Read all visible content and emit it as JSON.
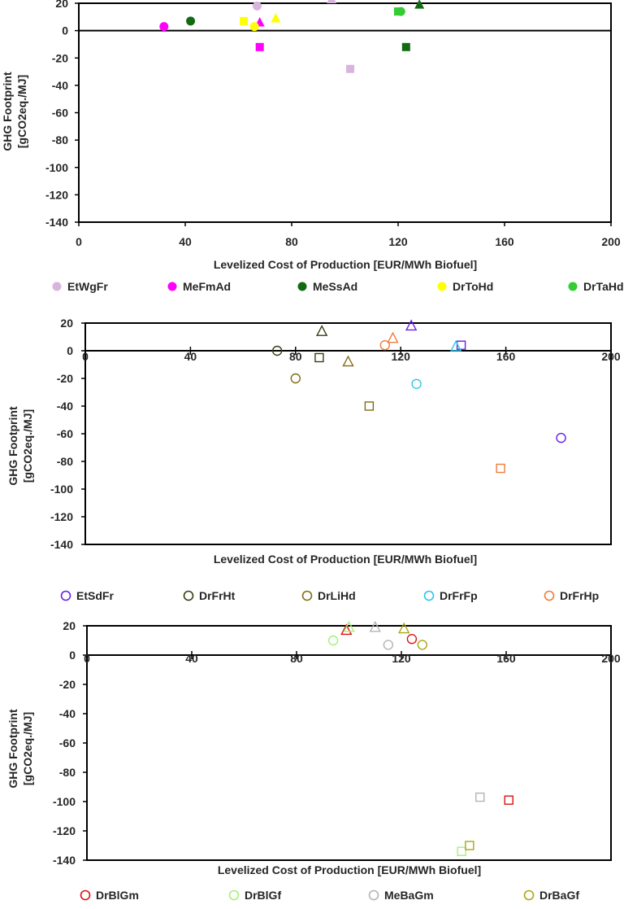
{
  "chart_data": [
    {
      "type": "scatter",
      "title": "",
      "xlabel": "Levelized Cost of Production [EUR/MWh Biofuel]",
      "ylabel": "GHG Footprint\n[gCO2eq./MJ]",
      "xlim": [
        0,
        200
      ],
      "ylim": [
        -140,
        20
      ],
      "xticks": [
        0,
        40,
        80,
        120,
        160,
        200
      ],
      "yticks": [
        20,
        0,
        -20,
        -40,
        -60,
        -80,
        -100,
        -120,
        -140
      ],
      "xticks_on_zero_line": false,
      "grid": false,
      "legend": [
        {
          "name": "EtWgFr",
          "color": "#d8b4de",
          "filled": true
        },
        {
          "name": "MeFmAd",
          "color": "#ff00ff",
          "filled": true
        },
        {
          "name": "MeSsAd",
          "color": "#126b12",
          "filled": true
        },
        {
          "name": "DrToHd",
          "color": "#ffff00",
          "filled": true
        },
        {
          "name": "DrTaHd",
          "color": "#33cc33",
          "filled": true
        }
      ],
      "series": [
        {
          "name": "EtWgFr",
          "color": "#d8b4de",
          "filled": true,
          "points": [
            {
              "x": 67,
              "y": 18,
              "marker": "circle"
            },
            {
              "x": 95,
              "y": 23,
              "marker": "triangle"
            },
            {
              "x": 102,
              "y": -28,
              "marker": "square"
            }
          ]
        },
        {
          "name": "MeFmAd",
          "color": "#ff00ff",
          "filled": true,
          "points": [
            {
              "x": 32,
              "y": 3,
              "marker": "circle"
            },
            {
              "x": 68,
              "y": 6,
              "marker": "triangle"
            },
            {
              "x": 68,
              "y": -12,
              "marker": "square"
            }
          ]
        },
        {
          "name": "MeSsAd",
          "color": "#126b12",
          "filled": true,
          "points": [
            {
              "x": 42,
              "y": 7,
              "marker": "circle"
            },
            {
              "x": 128,
              "y": 19,
              "marker": "triangle"
            },
            {
              "x": 123,
              "y": -12,
              "marker": "square"
            }
          ]
        },
        {
          "name": "DrToHd",
          "color": "#ffff00",
          "filled": true,
          "points": [
            {
              "x": 62,
              "y": 7,
              "marker": "square"
            },
            {
              "x": 66,
              "y": 3,
              "marker": "circle"
            },
            {
              "x": 74,
              "y": 9,
              "marker": "triangle"
            }
          ]
        },
        {
          "name": "DrTaHd",
          "color": "#33cc33",
          "filled": true,
          "points": [
            {
              "x": 121,
              "y": 14,
              "marker": "circle"
            },
            {
              "x": 120,
              "y": 14,
              "marker": "square"
            }
          ]
        }
      ]
    },
    {
      "type": "scatter",
      "title": "",
      "xlabel": "Levelized Cost of Production [EUR/MWh Biofuel]",
      "ylabel": "GHG Footprint\n[gCO2eq./MJ]",
      "xlim": [
        0,
        200
      ],
      "ylim": [
        -140,
        20
      ],
      "xticks": [
        0,
        40,
        80,
        120,
        160,
        200
      ],
      "yticks": [
        20,
        0,
        -20,
        -40,
        -60,
        -80,
        -100,
        -120,
        -140
      ],
      "xticks_on_zero_line": true,
      "grid": false,
      "legend": [
        {
          "name": "EtSdFr",
          "color": "#6a1ee6",
          "filled": false
        },
        {
          "name": "DrFrHt",
          "color": "#3c3c14",
          "filled": false
        },
        {
          "name": "DrLiHd",
          "color": "#826b14",
          "filled": false
        },
        {
          "name": "DrFrFp",
          "color": "#2cc4ee",
          "filled": false
        },
        {
          "name": "DrFrHp",
          "color": "#f07b3c",
          "filled": false
        }
      ],
      "series": [
        {
          "name": "EtSdFr",
          "color": "#6a1ee6",
          "filled": false,
          "points": [
            {
              "x": 124,
              "y": 18,
              "marker": "triangle"
            },
            {
              "x": 143,
              "y": 4,
              "marker": "square"
            },
            {
              "x": 181,
              "y": -63,
              "marker": "circle"
            }
          ]
        },
        {
          "name": "DrFrHt",
          "color": "#3c3c14",
          "filled": false,
          "points": [
            {
              "x": 73,
              "y": 0,
              "marker": "circle"
            },
            {
              "x": 90,
              "y": 14,
              "marker": "triangle"
            },
            {
              "x": 89,
              "y": -5,
              "marker": "square"
            }
          ]
        },
        {
          "name": "DrLiHd",
          "color": "#826b14",
          "filled": false,
          "points": [
            {
              "x": 80,
              "y": -20,
              "marker": "circle"
            },
            {
              "x": 100,
              "y": -8,
              "marker": "triangle"
            },
            {
              "x": 108,
              "y": -40,
              "marker": "square"
            }
          ]
        },
        {
          "name": "DrFrFp",
          "color": "#2cc4ee",
          "filled": false,
          "points": [
            {
              "x": 126,
              "y": -24,
              "marker": "circle"
            },
            {
              "x": 141,
              "y": 3,
              "marker": "triangle"
            }
          ]
        },
        {
          "name": "DrFrHp",
          "color": "#f07b3c",
          "filled": false,
          "points": [
            {
              "x": 114,
              "y": 4,
              "marker": "circle"
            },
            {
              "x": 117,
              "y": 9,
              "marker": "triangle"
            },
            {
              "x": 158,
              "y": -85,
              "marker": "square"
            }
          ]
        }
      ]
    },
    {
      "type": "scatter",
      "title": "",
      "xlabel": "Levelized Cost of Production [EUR/MWh Biofuel]",
      "ylabel": "GHG Footprint\n[gCO2eq./MJ]",
      "xlim": [
        0,
        200
      ],
      "ylim": [
        -140,
        20
      ],
      "xticks": [
        0,
        40,
        80,
        120,
        160,
        200
      ],
      "yticks": [
        20,
        0,
        -20,
        -40,
        -60,
        -80,
        -100,
        -120,
        -140
      ],
      "xticks_on_zero_line": true,
      "grid": false,
      "legend": [
        {
          "name": "DrBlGm",
          "color": "#dd1111",
          "filled": false
        },
        {
          "name": "DrBlGf",
          "color": "#a6f07a",
          "filled": false
        },
        {
          "name": "MeBaGm",
          "color": "#b4b4b4",
          "filled": false
        },
        {
          "name": "DrBaGf",
          "color": "#a8a814",
          "filled": false
        }
      ],
      "series": [
        {
          "name": "DrBlGm",
          "color": "#dd1111",
          "filled": false,
          "points": [
            {
              "x": 99,
              "y": 17,
              "marker": "triangle"
            },
            {
              "x": 124,
              "y": 11,
              "marker": "circle"
            },
            {
              "x": 161,
              "y": -99,
              "marker": "square"
            }
          ]
        },
        {
          "name": "DrBlGf",
          "color": "#a6f07a",
          "filled": false,
          "points": [
            {
              "x": 94,
              "y": 10,
              "marker": "circle"
            },
            {
              "x": 100,
              "y": 19,
              "marker": "triangle"
            },
            {
              "x": 143,
              "y": -134,
              "marker": "square"
            }
          ]
        },
        {
          "name": "MeBaGm",
          "color": "#b4b4b4",
          "filled": false,
          "points": [
            {
              "x": 110,
              "y": 19,
              "marker": "triangle"
            },
            {
              "x": 115,
              "y": 7,
              "marker": "circle"
            },
            {
              "x": 150,
              "y": -97,
              "marker": "square"
            }
          ]
        },
        {
          "name": "DrBaGf",
          "color": "#a8a814",
          "filled": false,
          "points": [
            {
              "x": 121,
              "y": 18,
              "marker": "triangle"
            },
            {
              "x": 128,
              "y": 7,
              "marker": "circle"
            },
            {
              "x": 146,
              "y": -130,
              "marker": "square"
            }
          ]
        }
      ]
    }
  ]
}
